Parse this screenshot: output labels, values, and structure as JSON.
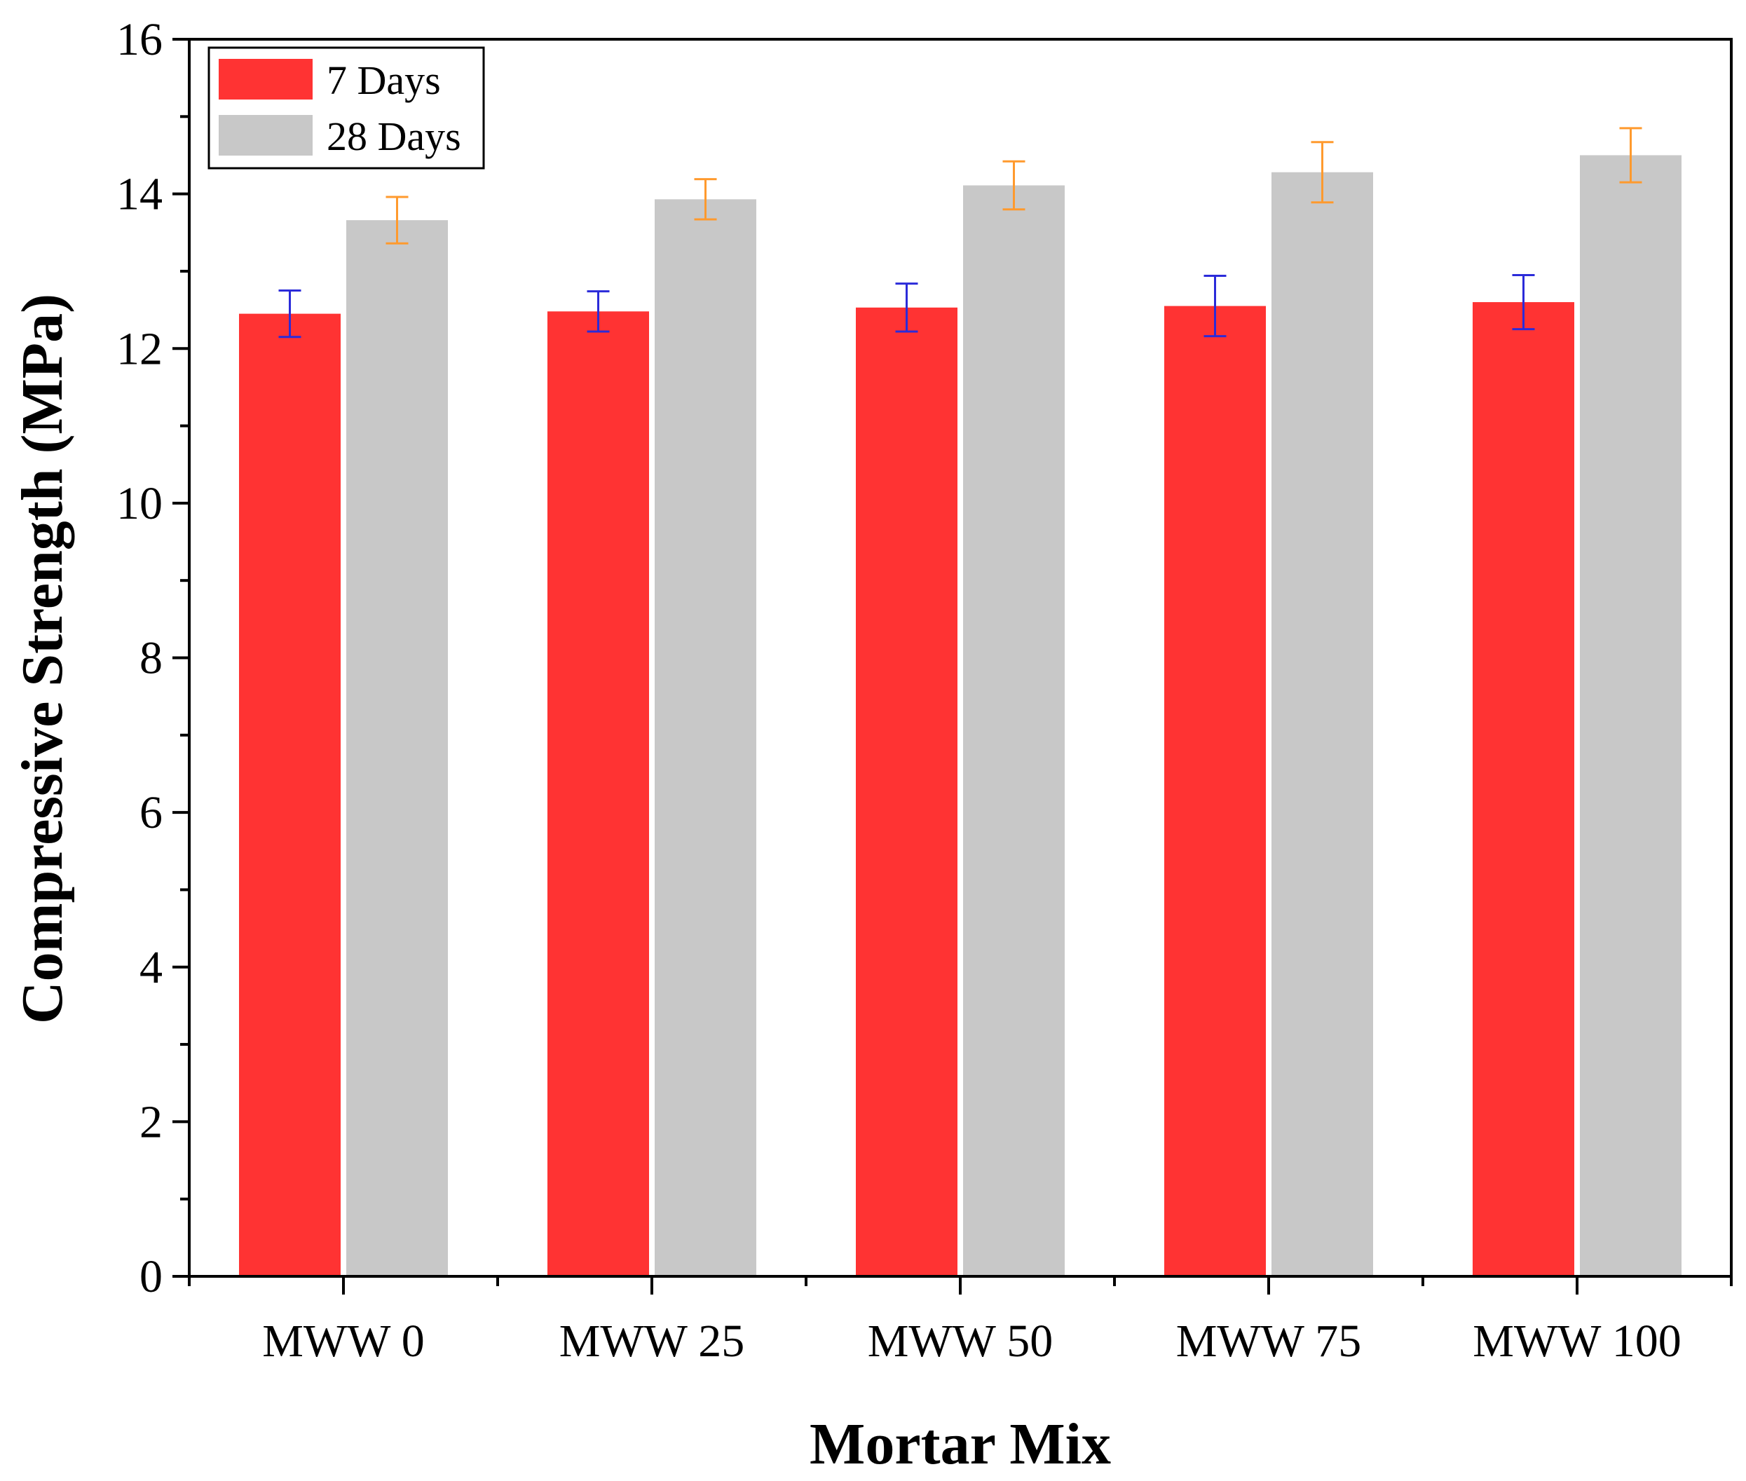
{
  "chart_data": {
    "type": "bar",
    "xlabel": "Mortar Mix",
    "ylabel": "Compressive Strength (MPa)",
    "ylim": [
      0,
      16
    ],
    "yticks": [
      0,
      2,
      4,
      6,
      8,
      10,
      12,
      14,
      16
    ],
    "ytick_labels": [
      "0",
      "2",
      "4",
      "6",
      "8",
      "10",
      "12",
      "14",
      "16"
    ],
    "categories": [
      "MWW 0",
      "MWW 25",
      "MWW 50",
      "MWW 75",
      "MWW 100"
    ],
    "legend_position": "top-left",
    "series": [
      {
        "name": "7 Days",
        "color": "#ff3333",
        "error_color": "#2b2bd9",
        "values": [
          12.45,
          12.48,
          12.53,
          12.55,
          12.6
        ],
        "errors": [
          0.3,
          0.26,
          0.31,
          0.39,
          0.35
        ]
      },
      {
        "name": "28 Days",
        "color": "#c8c8c8",
        "error_color": "#ff9a2e",
        "values": [
          13.66,
          13.93,
          14.11,
          14.28,
          14.5
        ],
        "errors": [
          0.3,
          0.26,
          0.31,
          0.39,
          0.35
        ]
      }
    ]
  }
}
